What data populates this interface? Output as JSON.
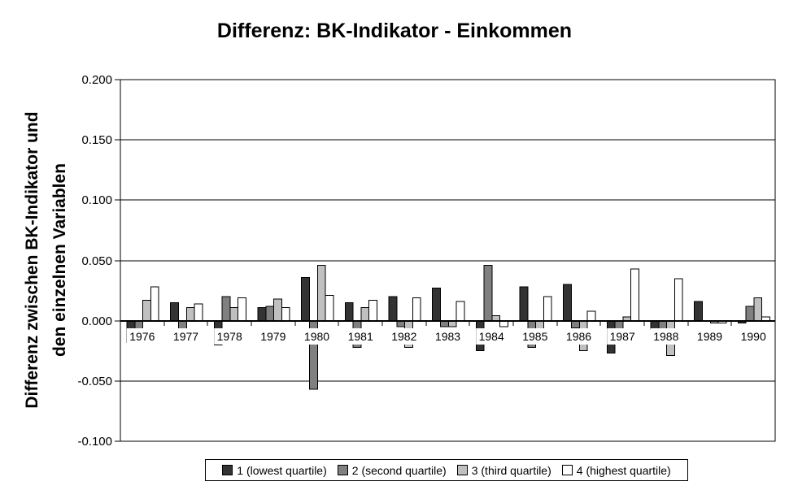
{
  "chart_data": {
    "type": "bar",
    "title": "Differenz: BK-Indikator - Einkommen",
    "ylabel_lines": [
      "Differenz zwischen BK-Indikator und",
      "den einzelnen Variablen"
    ],
    "xlabel": "",
    "categories": [
      "1976",
      "1977",
      "1978",
      "1979",
      "1980",
      "1981",
      "1982",
      "1983",
      "1984",
      "1985",
      "1986",
      "1987",
      "1988",
      "1989",
      "1990"
    ],
    "series": [
      {
        "name": "1 (lowest quartile)",
        "color": "#333333",
        "values": [
          -0.018,
          0.015,
          -0.02,
          0.011,
          0.036,
          0.015,
          0.02,
          0.027,
          -0.025,
          0.028,
          0.03,
          -0.027,
          -0.007,
          0.016,
          -0.002
        ]
      },
      {
        "name": "2 (second quartile)",
        "color": "#808080",
        "values": [
          -0.009,
          -0.009,
          0.02,
          0.012,
          -0.057,
          -0.022,
          -0.005,
          -0.005,
          0.046,
          -0.022,
          -0.006,
          -0.007,
          -0.007,
          0.0,
          0.012
        ]
      },
      {
        "name": "3 (third quartile)",
        "color": "#c0c0c0",
        "values": [
          0.017,
          0.011,
          0.011,
          0.018,
          0.046,
          0.011,
          -0.022,
          -0.005,
          0.004,
          -0.007,
          -0.025,
          0.003,
          -0.029,
          -0.002,
          0.019
        ]
      },
      {
        "name": "4 (highest quartile)",
        "color": "#ffffff",
        "values": [
          0.028,
          0.014,
          0.019,
          0.011,
          0.021,
          0.017,
          0.019,
          0.016,
          -0.005,
          0.02,
          0.008,
          0.043,
          0.035,
          -0.002,
          0.003
        ]
      }
    ],
    "ylim": [
      -0.1,
      0.2
    ],
    "ytick_step": 0.05,
    "ytick_labels": [
      "0.200",
      "0.150",
      "0.100",
      "0.050",
      "0.000",
      "-0.050",
      "-0.100"
    ],
    "ytick_values": [
      0.2,
      0.15,
      0.1,
      0.05,
      0.0,
      -0.05,
      -0.1
    ],
    "grid": true,
    "legend_position": "bottom",
    "axis_color": "#000000",
    "plot_background": "#ffffff"
  }
}
